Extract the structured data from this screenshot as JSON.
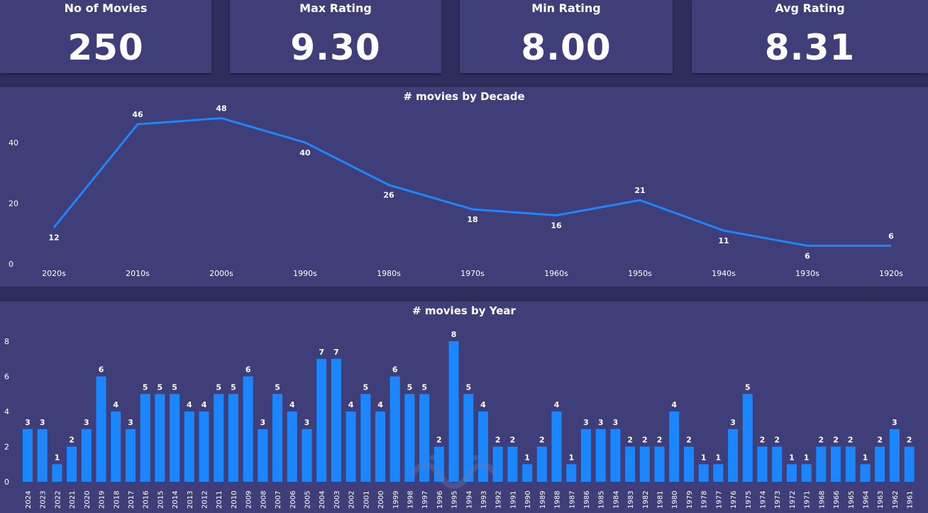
{
  "kpis": [
    {
      "label": "No of Movies",
      "value": "250"
    },
    {
      "label": "Max Rating",
      "value": "9.30"
    },
    {
      "label": "Min Rating",
      "value": "8.00"
    },
    {
      "label": "Avg Rating",
      "value": "8.31"
    }
  ],
  "colors": {
    "background": "#2e2d5e",
    "panel": "#403e78",
    "series": "#1a86ff",
    "text": "#ffffff"
  },
  "chart_data": [
    {
      "type": "line",
      "title": "# movies by Decade",
      "categories": [
        "2020s",
        "2010s",
        "2000s",
        "1990s",
        "1980s",
        "1970s",
        "1960s",
        "1950s",
        "1940s",
        "1930s",
        "1920s"
      ],
      "values": [
        12,
        46,
        48,
        40,
        26,
        18,
        16,
        21,
        11,
        6,
        6
      ],
      "ylim": [
        0,
        50
      ],
      "yticks": [
        0,
        20,
        40
      ],
      "grid": false
    },
    {
      "type": "bar",
      "title": "# movies by Year",
      "categories": [
        "2024",
        "2023",
        "2022",
        "2021",
        "2020",
        "2019",
        "2018",
        "2017",
        "2016",
        "2015",
        "2014",
        "2013",
        "2012",
        "2011",
        "2010",
        "2009",
        "2008",
        "2007",
        "2006",
        "2005",
        "2004",
        "2003",
        "2002",
        "2001",
        "2000",
        "1999",
        "1998",
        "1997",
        "1996",
        "1995",
        "1994",
        "1993",
        "1992",
        "1991",
        "1990",
        "1989",
        "1988",
        "1987",
        "1986",
        "1985",
        "1984",
        "1983",
        "1982",
        "1981",
        "1980",
        "1979",
        "1978",
        "1977",
        "1976",
        "1975",
        "1974",
        "1973",
        "1972",
        "1971",
        "1968",
        "1966",
        "1965",
        "1964",
        "1963",
        "1962",
        "1961"
      ],
      "values": [
        3,
        3,
        1,
        2,
        3,
        6,
        4,
        3,
        5,
        5,
        5,
        4,
        4,
        5,
        5,
        6,
        3,
        5,
        4,
        3,
        7,
        7,
        4,
        5,
        4,
        6,
        5,
        5,
        2,
        8,
        5,
        4,
        2,
        2,
        1,
        2,
        4,
        1,
        3,
        3,
        3,
        2,
        2,
        2,
        4,
        2,
        1,
        1,
        3,
        5,
        2,
        2,
        1,
        1,
        2,
        2,
        2,
        1,
        2,
        3,
        2
      ],
      "ylim": [
        0,
        8.5
      ],
      "yticks": [
        0,
        2,
        4,
        6,
        8
      ],
      "grid": false
    }
  ]
}
